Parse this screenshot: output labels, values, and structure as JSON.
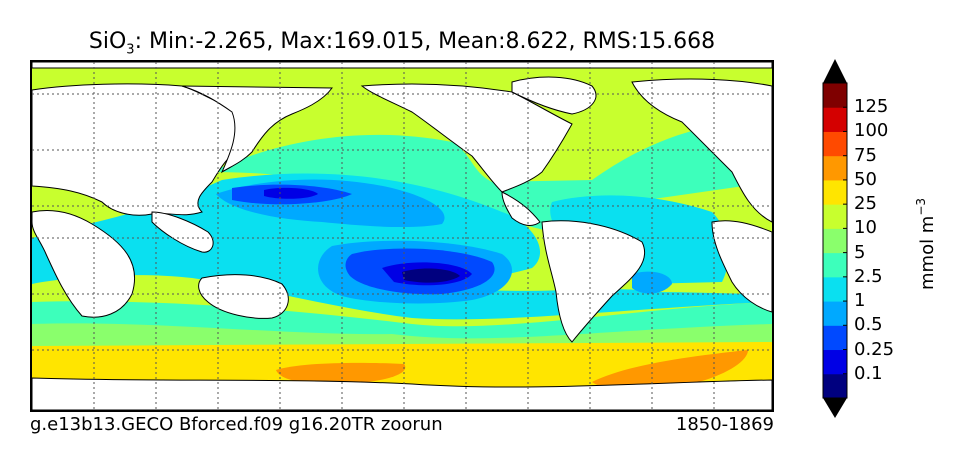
{
  "title": {
    "variable": "SiO",
    "subscript": "3",
    "stats": ": Min:-2.265, Max:169.015, Mean:8.622, RMS:15.668"
  },
  "footer": {
    "case_name": "g.e13b13.GECO Bforced.f09 g16.20TR zoorun",
    "years": "1850-1869"
  },
  "colorbar": {
    "units_main": "mmol m",
    "units_exponent": "−3",
    "levels": [
      "0.1",
      "0.25",
      "0.5",
      "1",
      "2.5",
      "5",
      "10",
      "25",
      "50",
      "75",
      "100",
      "125"
    ],
    "colors": [
      "#00007f",
      "#0000e5",
      "#0049ff",
      "#00a9ff",
      "#0ae0f0",
      "#3dffbb",
      "#8aff6c",
      "#c8ff2e",
      "#ffe500",
      "#ff9800",
      "#ff4a00",
      "#d40000",
      "#7f0000"
    ]
  },
  "map_colors": {
    "land": "#ffffff",
    "coast": "#000000",
    "grid": "#555555"
  }
}
